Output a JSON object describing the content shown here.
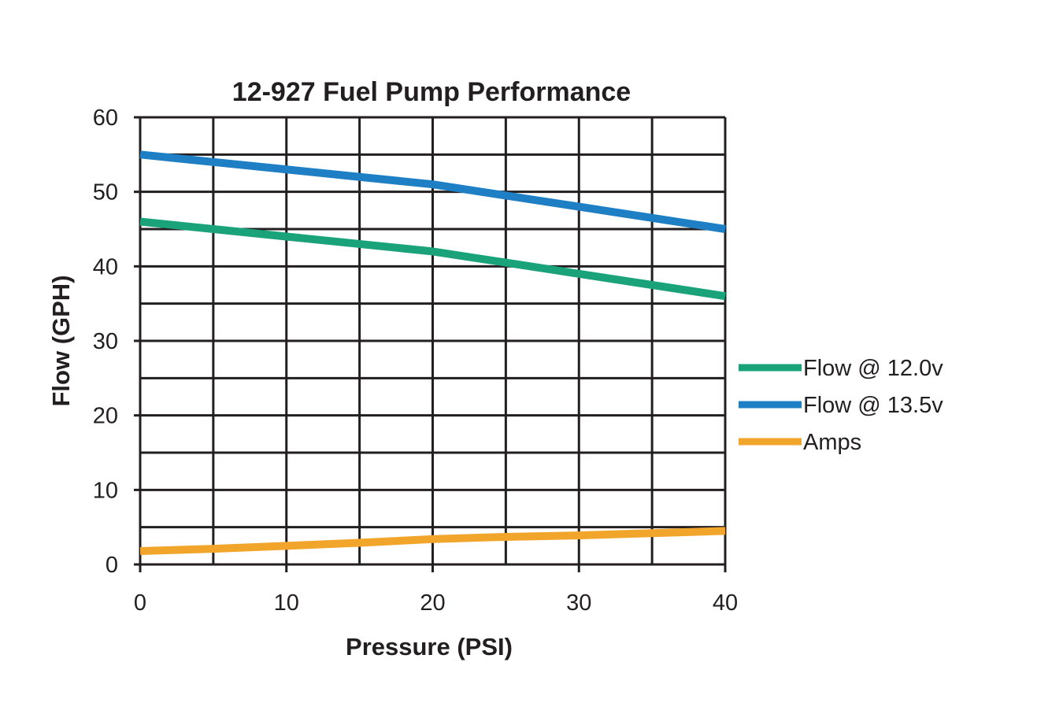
{
  "chart_data": {
    "type": "line",
    "title": "12-927 Fuel Pump Performance",
    "xlabel": "Pressure (PSI)",
    "ylabel": "Flow (GPH)",
    "xlim": [
      0,
      40
    ],
    "ylim": [
      0,
      60
    ],
    "x_ticks": [
      0,
      10,
      20,
      30,
      40
    ],
    "y_ticks": [
      0,
      10,
      20,
      30,
      40,
      50,
      60
    ],
    "x_tick_labels": [
      "0",
      "10",
      "20",
      "30",
      "40"
    ],
    "y_tick_labels": [
      "0",
      "10",
      "20",
      "30",
      "40",
      "50",
      "60"
    ],
    "grid": true,
    "grid_step": 5,
    "legend_position": "right",
    "x": [
      0,
      5,
      10,
      15,
      20,
      25,
      30,
      35,
      40
    ],
    "series": [
      {
        "name": "Flow @ 12.0v",
        "color": "#1aa37a",
        "values": [
          46,
          45,
          44,
          43,
          42,
          40.5,
          39,
          37.5,
          36
        ]
      },
      {
        "name": "Flow @ 13.5v",
        "color": "#1f7fc4",
        "values": [
          55,
          54,
          53,
          52,
          51,
          49.5,
          48,
          46.5,
          45
        ]
      },
      {
        "name": "Amps",
        "color": "#f2a52b",
        "values": [
          1.8,
          2.1,
          2.5,
          2.9,
          3.4,
          3.7,
          3.9,
          4.2,
          4.5
        ]
      }
    ]
  }
}
